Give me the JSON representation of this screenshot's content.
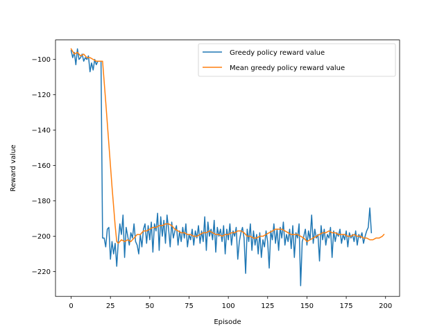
{
  "chart_data": {
    "type": "line",
    "title": "",
    "xlabel": "Episode",
    "ylabel": "Reward value",
    "xlim": [
      -9.95,
      208.95
    ],
    "ylim": [
      -234,
      -89
    ],
    "xticks": [
      0,
      25,
      50,
      75,
      100,
      125,
      150,
      175,
      200
    ],
    "xtick_labels": [
      "0",
      "25",
      "50",
      "75",
      "100",
      "125",
      "150",
      "175",
      "200"
    ],
    "yticks": [
      -100,
      -120,
      -140,
      -160,
      -180,
      -200,
      -220
    ],
    "ytick_labels": [
      "−100",
      "−120",
      "−140",
      "−160",
      "−180",
      "−200",
      "−220"
    ],
    "grid": false,
    "legend_position": "upper right",
    "series": [
      {
        "name": "Greedy policy reward value",
        "color": "#1f77b4",
        "values": [
          -95,
          -99,
          -96,
          -103,
          -94,
          -100,
          -99,
          -97,
          -101,
          -99,
          -100,
          -98,
          -107,
          -102,
          -106,
          -100,
          -103,
          -101,
          -101,
          -101,
          -201,
          -201,
          -206,
          -196,
          -195,
          -213,
          -203,
          -210,
          -204,
          -217,
          -203,
          -193,
          -199,
          -188,
          -212,
          -195,
          -200,
          -205,
          -198,
          -201,
          -193,
          -203,
          -205,
          -210,
          -199,
          -206,
          -196,
          -193,
          -204,
          -194,
          -202,
          -192,
          -209,
          -193,
          -197,
          -187,
          -208,
          -189,
          -200,
          -191,
          -204,
          -188,
          -196,
          -206,
          -192,
          -201,
          -197,
          -194,
          -205,
          -197,
          -203,
          -195,
          -201,
          -193,
          -206,
          -199,
          -202,
          -196,
          -205,
          -197,
          -201,
          -194,
          -204,
          -197,
          -203,
          -189,
          -208,
          -192,
          -200,
          -196,
          -202,
          -191,
          -209,
          -195,
          -200,
          -196,
          -203,
          -194,
          -210,
          -196,
          -202,
          -193,
          -205,
          -197,
          -200,
          -195,
          -213,
          -203,
          -198,
          -195,
          -201,
          -221,
          -196,
          -203,
          -193,
          -208,
          -197,
          -205,
          -199,
          -210,
          -198,
          -212,
          -202,
          -206,
          -197,
          -203,
          -218,
          -197,
          -202,
          -193,
          -204,
          -196,
          -208,
          -195,
          -201,
          -192,
          -205,
          -199,
          -203,
          -196,
          -207,
          -194,
          -212,
          -198,
          -201,
          -193,
          -228,
          -203,
          -200,
          -196,
          -205,
          -197,
          -202,
          -188,
          -204,
          -196,
          -201,
          -199,
          -214,
          -194,
          -202,
          -196,
          -205,
          -199,
          -201,
          -195,
          -212,
          -197,
          -203,
          -198,
          -200,
          -196,
          -204,
          -199,
          -202,
          -197,
          -206,
          -198,
          -201,
          -199,
          -203,
          -197,
          -205,
          -199,
          -201,
          -198,
          -204,
          -200,
          -197,
          -195,
          -184,
          -198
        ]
      },
      {
        "name": "Mean greedy policy reward value",
        "color": "#ff7f0e",
        "x": [
          0,
          2,
          4,
          6,
          8,
          10,
          12,
          14,
          16,
          18,
          20,
          22,
          24,
          26,
          28,
          29,
          30,
          32,
          34,
          36,
          38,
          40,
          42,
          44,
          46,
          48,
          50,
          52,
          54,
          56,
          58,
          60,
          62,
          64,
          66,
          68,
          70,
          72,
          74,
          76,
          78,
          80,
          82,
          84,
          86,
          88,
          90,
          92,
          94,
          96,
          98,
          100,
          102,
          104,
          106,
          108,
          110,
          112,
          114,
          116,
          118,
          120,
          122,
          124,
          126,
          128,
          130,
          132,
          134,
          136,
          138,
          140,
          142,
          144,
          146,
          148,
          150,
          152,
          154,
          156,
          158,
          160,
          162,
          164,
          166,
          168,
          170,
          172,
          174,
          176,
          178,
          180,
          182,
          184,
          186,
          188,
          190,
          192,
          194,
          196,
          198,
          199
        ],
        "values": [
          -94,
          -97,
          -96,
          -98,
          -97,
          -99,
          -99,
          -100,
          -101,
          -101,
          -101,
          -124,
          -148,
          -172,
          -194,
          -203,
          -204,
          -202,
          -203,
          -202,
          -203,
          -201,
          -199,
          -199,
          -197,
          -197,
          -196,
          -195,
          -195,
          -194,
          -194,
          -193,
          -193,
          -194,
          -196,
          -197,
          -198,
          -198,
          -199,
          -199,
          -200,
          -200,
          -199,
          -198,
          -198,
          -197,
          -198,
          -199,
          -199,
          -200,
          -199,
          -199,
          -198,
          -198,
          -197,
          -197,
          -198,
          -200,
          -200,
          -201,
          -201,
          -200,
          -200,
          -199,
          -198,
          -197,
          -196,
          -196,
          -196,
          -197,
          -198,
          -199,
          -199,
          -199,
          -200,
          -201,
          -203,
          -202,
          -201,
          -200,
          -199,
          -198,
          -198,
          -197,
          -198,
          -198,
          -199,
          -199,
          -199,
          -200,
          -200,
          -199,
          -200,
          -200,
          -201,
          -201,
          -202,
          -202,
          -201,
          -201,
          -200,
          -199
        ]
      }
    ]
  }
}
